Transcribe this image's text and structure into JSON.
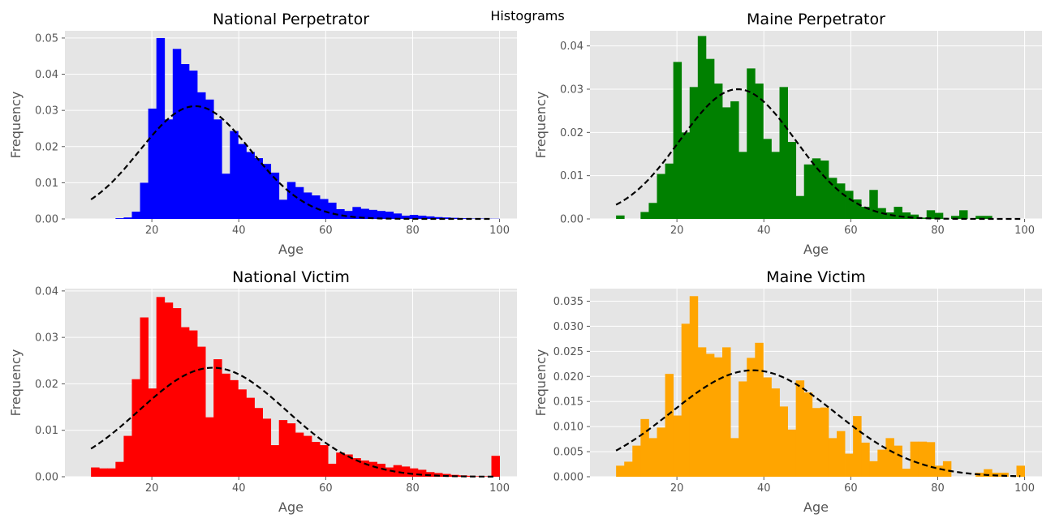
{
  "figure": {
    "suptitle": "Histograms"
  },
  "chart_data": [
    {
      "type": "bar",
      "title": "National Perpetrator",
      "xlabel": "Age",
      "ylabel": "Frequency",
      "color": "#0000ff",
      "fit_color": "#000000",
      "xlim": [
        0,
        104
      ],
      "ylim": [
        0,
        0.052
      ],
      "xticks": [
        20,
        40,
        60,
        80,
        100
      ],
      "yticks": [
        0.0,
        0.01,
        0.02,
        0.03,
        0.04,
        0.05
      ],
      "ytick_labels": [
        "0.00",
        "0.01",
        "0.02",
        "0.03",
        "0.04",
        "0.05"
      ],
      "bins": {
        "start": 6,
        "end": 100,
        "count": 50
      },
      "values": [
        0.0,
        0.0,
        0.0,
        0.0002,
        0.0004,
        0.002,
        0.01,
        0.0305,
        0.05,
        0.0275,
        0.047,
        0.0428,
        0.041,
        0.035,
        0.033,
        0.0275,
        0.0125,
        0.0243,
        0.0207,
        0.0185,
        0.0168,
        0.0152,
        0.0128,
        0.0053,
        0.0102,
        0.0088,
        0.0073,
        0.0065,
        0.0055,
        0.0045,
        0.0027,
        0.0022,
        0.0033,
        0.0028,
        0.0025,
        0.0022,
        0.002,
        0.0015,
        0.0009,
        0.0011,
        0.0009,
        0.0007,
        0.0005,
        0.0004,
        0.0003,
        0.0002,
        0.0001,
        0.0001,
        5e-05,
        5e-05
      ],
      "fit": {
        "distribution": "normal",
        "mean": 30,
        "sd": 12.8,
        "x_range": [
          6,
          98
        ]
      }
    },
    {
      "type": "bar",
      "title": "Maine Perpetrator",
      "xlabel": "Age",
      "ylabel": "Frequency",
      "color": "#008000",
      "fit_color": "#000000",
      "xlim": [
        0,
        104
      ],
      "ylim": [
        0,
        0.0435
      ],
      "xticks": [
        20,
        40,
        60,
        80,
        100
      ],
      "yticks": [
        0.0,
        0.01,
        0.02,
        0.03,
        0.04
      ],
      "ytick_labels": [
        "0.00",
        "0.01",
        "0.02",
        "0.03",
        "0.04"
      ],
      "bins": {
        "start": 6,
        "end": 100,
        "count": 50
      },
      "values": [
        0.0008,
        0.0,
        0.0,
        0.0016,
        0.0037,
        0.0104,
        0.0128,
        0.0363,
        0.02,
        0.0305,
        0.0423,
        0.037,
        0.0313,
        0.0258,
        0.0272,
        0.0155,
        0.0348,
        0.0313,
        0.0185,
        0.0155,
        0.0305,
        0.0178,
        0.0053,
        0.0126,
        0.014,
        0.0135,
        0.0095,
        0.0082,
        0.0065,
        0.0045,
        0.0028,
        0.0067,
        0.0025,
        0.0015,
        0.0028,
        0.0015,
        0.001,
        0.0003,
        0.002,
        0.0014,
        0.0,
        0.0007,
        0.002,
        0.0,
        0.0007,
        0.0007,
        0.0,
        0.0,
        0.0,
        0.0
      ],
      "fit": {
        "distribution": "normal",
        "mean": 34,
        "sd": 13.3,
        "x_range": [
          6,
          99
        ]
      }
    },
    {
      "type": "bar",
      "title": "National Victim",
      "xlabel": "Age",
      "ylabel": "Frequency",
      "color": "#ff0000",
      "fit_color": "#000000",
      "xlim": [
        0,
        104
      ],
      "ylim": [
        0,
        0.0405
      ],
      "xticks": [
        20,
        40,
        60,
        80,
        100
      ],
      "yticks": [
        0.0,
        0.01,
        0.02,
        0.03,
        0.04
      ],
      "ytick_labels": [
        "0.00",
        "0.01",
        "0.02",
        "0.03",
        "0.04"
      ],
      "bins": {
        "start": 6,
        "end": 100,
        "count": 50
      },
      "values": [
        0.002,
        0.0018,
        0.0018,
        0.0032,
        0.0088,
        0.021,
        0.0343,
        0.019,
        0.0387,
        0.0375,
        0.0363,
        0.0322,
        0.0315,
        0.028,
        0.0128,
        0.0253,
        0.0222,
        0.0208,
        0.0188,
        0.017,
        0.0148,
        0.0125,
        0.0068,
        0.0122,
        0.0115,
        0.0095,
        0.0088,
        0.0075,
        0.0068,
        0.0028,
        0.0052,
        0.0048,
        0.004,
        0.0035,
        0.0032,
        0.0028,
        0.002,
        0.0025,
        0.0022,
        0.0018,
        0.0015,
        0.001,
        0.0008,
        0.0006,
        0.0004,
        0.0003,
        0.0002,
        0.0001,
        0.0001,
        0.0045
      ],
      "fit": {
        "distribution": "normal",
        "mean": 34,
        "sd": 17,
        "x_range": [
          6,
          99
        ]
      }
    },
    {
      "type": "bar",
      "title": "Maine Victim",
      "xlabel": "Age",
      "ylabel": "Frequency",
      "color": "#ffa500",
      "fit_color": "#000000",
      "xlim": [
        0,
        104
      ],
      "ylim": [
        0,
        0.0375
      ],
      "xticks": [
        20,
        40,
        60,
        80,
        100
      ],
      "yticks": [
        0.0,
        0.005,
        0.01,
        0.015,
        0.02,
        0.025,
        0.03,
        0.035
      ],
      "ytick_labels": [
        "0.000",
        "0.005",
        "0.010",
        "0.015",
        "0.020",
        "0.025",
        "0.030",
        "0.035"
      ],
      "bins": {
        "start": 6,
        "end": 100,
        "count": 50
      },
      "values": [
        0.0022,
        0.003,
        0.0062,
        0.0115,
        0.0077,
        0.0098,
        0.0205,
        0.0122,
        0.0305,
        0.036,
        0.0258,
        0.0245,
        0.0238,
        0.0258,
        0.0077,
        0.019,
        0.0237,
        0.0267,
        0.0198,
        0.0176,
        0.014,
        0.0094,
        0.0192,
        0.0168,
        0.0137,
        0.0138,
        0.0077,
        0.0091,
        0.0046,
        0.0121,
        0.0068,
        0.0031,
        0.0054,
        0.0077,
        0.0062,
        0.0016,
        0.007,
        0.007,
        0.0069,
        0.0022,
        0.0031,
        0.0,
        0.0,
        0.0,
        0.0008,
        0.0015,
        0.0008,
        0.0008,
        0.0,
        0.0022
      ],
      "fit": {
        "distribution": "normal",
        "mean": 37.5,
        "sd": 18.8,
        "x_range": [
          6,
          99
        ]
      }
    }
  ]
}
